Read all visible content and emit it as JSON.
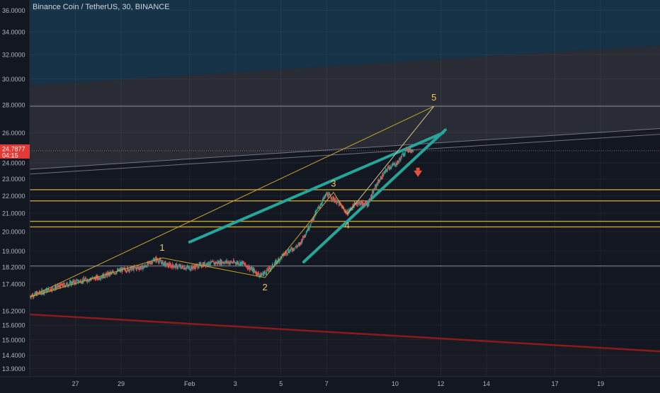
{
  "header": {
    "title": "Binance Coin / TetherUS, 30, BINANCE"
  },
  "price_badge": {
    "price": "24.7877",
    "countdown": "04:15"
  },
  "chart_data": {
    "type": "candlestick",
    "title": "Binance Coin / TetherUS, 30, BINANCE",
    "symbol": "Binance Coin / TetherUS",
    "interval": "30",
    "exchange": "BINANCE",
    "scale": "log",
    "ylim": [
      13.6,
      37.0
    ],
    "y_ticks": [
      "36.0000",
      "34.0000",
      "32.0000",
      "30.0000",
      "28.0000",
      "26.0000",
      "24.0000",
      "23.0000",
      "22.0000",
      "21.0000",
      "20.0000",
      "19.0000",
      "18.2000",
      "17.4000",
      "16.2000",
      "15.6000",
      "15.0000",
      "14.4000",
      "13.9000"
    ],
    "x_ticks": [
      "27",
      "29",
      "Feb",
      "3",
      "5",
      "7",
      "10",
      "12",
      "14",
      "17",
      "19"
    ],
    "x_tick_days": [
      27,
      29,
      32,
      34,
      36,
      38,
      41,
      43,
      45,
      48,
      50
    ],
    "xlim_days": [
      25.0,
      52.6
    ],
    "grid": true,
    "last_price": 24.7877,
    "price_path": [
      {
        "day": 25.0,
        "price": 16.85
      },
      {
        "day": 26.0,
        "price": 17.2
      },
      {
        "day": 27.0,
        "price": 17.5
      },
      {
        "day": 28.0,
        "price": 17.7
      },
      {
        "day": 29.0,
        "price": 18.05
      },
      {
        "day": 30.0,
        "price": 18.2
      },
      {
        "day": 30.5,
        "price": 18.6
      },
      {
        "day": 31.0,
        "price": 18.3
      },
      {
        "day": 32.0,
        "price": 18.15
      },
      {
        "day": 32.7,
        "price": 18.35
      },
      {
        "day": 33.5,
        "price": 18.45
      },
      {
        "day": 34.3,
        "price": 18.4
      },
      {
        "day": 35.1,
        "price": 17.8
      },
      {
        "day": 35.5,
        "price": 18.1
      },
      {
        "day": 36.2,
        "price": 18.9
      },
      {
        "day": 36.8,
        "price": 19.3
      },
      {
        "day": 37.2,
        "price": 20.2
      },
      {
        "day": 37.6,
        "price": 21.2
      },
      {
        "day": 38.0,
        "price": 22.1
      },
      {
        "day": 38.5,
        "price": 21.6
      },
      {
        "day": 38.9,
        "price": 21.0
      },
      {
        "day": 39.3,
        "price": 21.6
      },
      {
        "day": 39.8,
        "price": 21.5
      },
      {
        "day": 40.2,
        "price": 22.7
      },
      {
        "day": 40.7,
        "price": 23.7
      },
      {
        "day": 41.1,
        "price": 24.0
      },
      {
        "day": 41.5,
        "price": 24.9
      },
      {
        "day": 41.8,
        "price": 24.8
      }
    ],
    "elliott_wave": {
      "labels": [
        "1",
        "2",
        "3",
        "4",
        "5"
      ],
      "points": [
        {
          "label": "",
          "day": 25.0,
          "price": 16.8
        },
        {
          "label": "1",
          "day": 30.8,
          "price": 18.65
        },
        {
          "label": "2",
          "day": 35.3,
          "price": 17.7
        },
        {
          "label": "3",
          "day": 38.3,
          "price": 22.2
        },
        {
          "label": "4",
          "day": 38.9,
          "price": 20.95
        },
        {
          "label": "5",
          "day": 42.7,
          "price": 27.9
        }
      ],
      "label_color": "#f0c75e",
      "line_color": "#c9a227"
    },
    "wedge_lines": [
      {
        "from": {
          "day": 32.0,
          "price": 19.45
        },
        "to": {
          "day": 43.1,
          "price": 26.0
        }
      },
      {
        "from": {
          "day": 37.0,
          "price": 18.45
        },
        "to": {
          "day": 43.2,
          "price": 26.2
        }
      }
    ],
    "resistance_lines_yellow": [
      22.35,
      21.7,
      20.55,
      20.25
    ],
    "resistance_lines_grey": [
      27.9,
      24.7877,
      18.25
    ],
    "channel_lines_grey": [
      {
        "from": {
          "day": 25.0,
          "price": 23.3
        },
        "to": {
          "day": 52.6,
          "price": 25.9
        }
      },
      {
        "from": {
          "day": 25.0,
          "price": 23.6
        },
        "to": {
          "day": 52.6,
          "price": 26.3
        }
      }
    ],
    "support_line_red": {
      "from": {
        "day": 25.0,
        "price": 16.05
      },
      "to": {
        "day": 52.6,
        "price": 14.55
      }
    },
    "top_channel_line": {
      "from": {
        "day": 25.0,
        "price": 29.5
      },
      "to": {
        "day": 52.6,
        "price": 32.8
      }
    },
    "down_arrow": {
      "day": 42.0,
      "price": 23.3
    },
    "colors": {
      "background": "#131722",
      "candle_up": "#26a69a",
      "candle_down": "#ef5350",
      "wedge": "#26a69a",
      "support": "#8b1a1a",
      "resistance": "#c9a227",
      "price_badge": "#e53935",
      "arrow": "#e2533a",
      "upper_zone": "#15344a",
      "mid_zone": "#2c2f37"
    }
  }
}
